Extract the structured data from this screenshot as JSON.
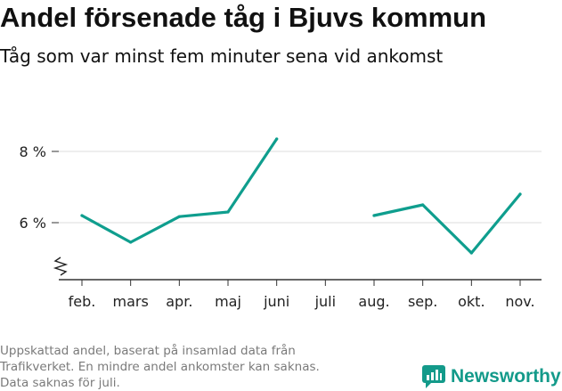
{
  "header": {
    "title": "Andel försenade tåg i Bjuvs kommun",
    "subtitle": "Tåg som var minst fem minuter sena vid ankomst"
  },
  "footer": {
    "lines": [
      "Uppskattad andel, baserat på insamlad data från",
      "Trafikverket. En mindre andel ankomster kan saknas.",
      "Data saknas för juli."
    ]
  },
  "brand": {
    "name": "Newsworthy",
    "icon": "newsworthy-logo-icon",
    "color": "#139a8a"
  },
  "chart_data": {
    "type": "line",
    "categories": [
      "feb.",
      "mars",
      "apr.",
      "maj",
      "juni",
      "juli",
      "aug.",
      "sep.",
      "okt.",
      "nov."
    ],
    "series": [
      {
        "values": [
          6.2,
          5.45,
          6.17,
          6.3,
          8.35,
          null,
          6.2,
          6.5,
          5.15,
          6.8
        ],
        "color": "#0f9e8e"
      }
    ],
    "yticks": [
      6,
      8
    ],
    "ytick_labels": [
      "6 %",
      "8 %"
    ],
    "ylim": [
      4.4,
      9.0
    ],
    "axis_break": true,
    "grid": true,
    "gridline_color": "#dddddd",
    "xlabel": "",
    "ylabel": ""
  }
}
